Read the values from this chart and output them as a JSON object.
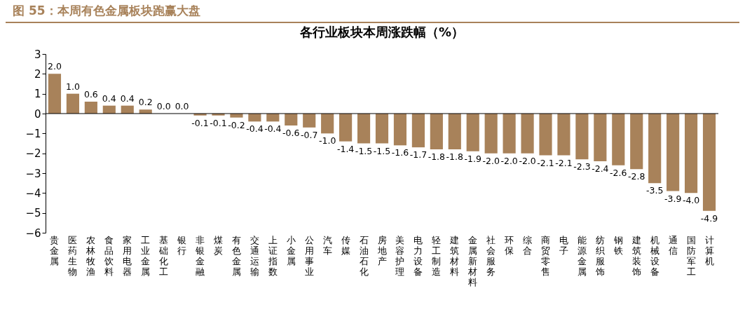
{
  "chart_data": {
    "type": "bar",
    "title": "图 55：本周有色金属板块跑赢大盘",
    "subtitle": "各行业板块本周涨跌幅（%）",
    "categories": [
      "贵金属",
      "医药生物",
      "农林牧渔",
      "食品饮料",
      "家用电器",
      "工业金属",
      "基础化工",
      "银行",
      "非银金融",
      "煤炭",
      "有色金属",
      "交通运输",
      "上证指数",
      "小金属",
      "公用事业",
      "汽车",
      "传媒",
      "石油石化",
      "房地产",
      "美容护理",
      "电力设备",
      "轻工制造",
      "建筑材料",
      "金属新材料",
      "社会服务",
      "环保",
      "综合",
      "商贸零售",
      "电子",
      "能源金属",
      "纺织服饰",
      "钢铁",
      "建筑装饰",
      "机械设备",
      "通信",
      "国防军工",
      "计算机"
    ],
    "values": [
      2.0,
      1.0,
      0.6,
      0.4,
      0.4,
      0.2,
      0.0,
      0.0,
      -0.1,
      -0.1,
      -0.2,
      -0.4,
      -0.4,
      -0.6,
      -0.7,
      -1.0,
      -1.4,
      -1.5,
      -1.5,
      -1.6,
      -1.7,
      -1.8,
      -1.8,
      -1.9,
      -2.0,
      -2.0,
      -2.0,
      -2.1,
      -2.1,
      -2.3,
      -2.4,
      -2.6,
      -2.8,
      -3.5,
      -3.9,
      -4.0,
      -4.9
    ],
    "value_labels": [
      "2.0",
      "1.0",
      "0.6",
      "0.4",
      "0.4",
      "0.2",
      "0.0",
      "0.0",
      "-0.1",
      "-0.1",
      "-0.2",
      "-0.4",
      "-0.4",
      "-0.6",
      "-0.7",
      "-1.0",
      "-1.4",
      "-1.5",
      "-1.5",
      "-1.6",
      "-1.7",
      "-1.8",
      "-1.8",
      "-1.9",
      "-2.0",
      "-2.0",
      "-2.0",
      "-2.1",
      "-2.1",
      "-2.3",
      "-2.4",
      "-2.6",
      "-2.8",
      "-3.5",
      "-3.9",
      "-4.0",
      "-4.9"
    ],
    "color": "#a8825a",
    "ylim": [
      -6,
      3
    ],
    "yticks": [
      -6,
      -5,
      -4,
      -3,
      -2,
      -1,
      0,
      1,
      2,
      3
    ],
    "grid": false,
    "ref_lines": [
      {
        "axis": "y",
        "value": 0,
        "color": "#000000"
      }
    ]
  }
}
